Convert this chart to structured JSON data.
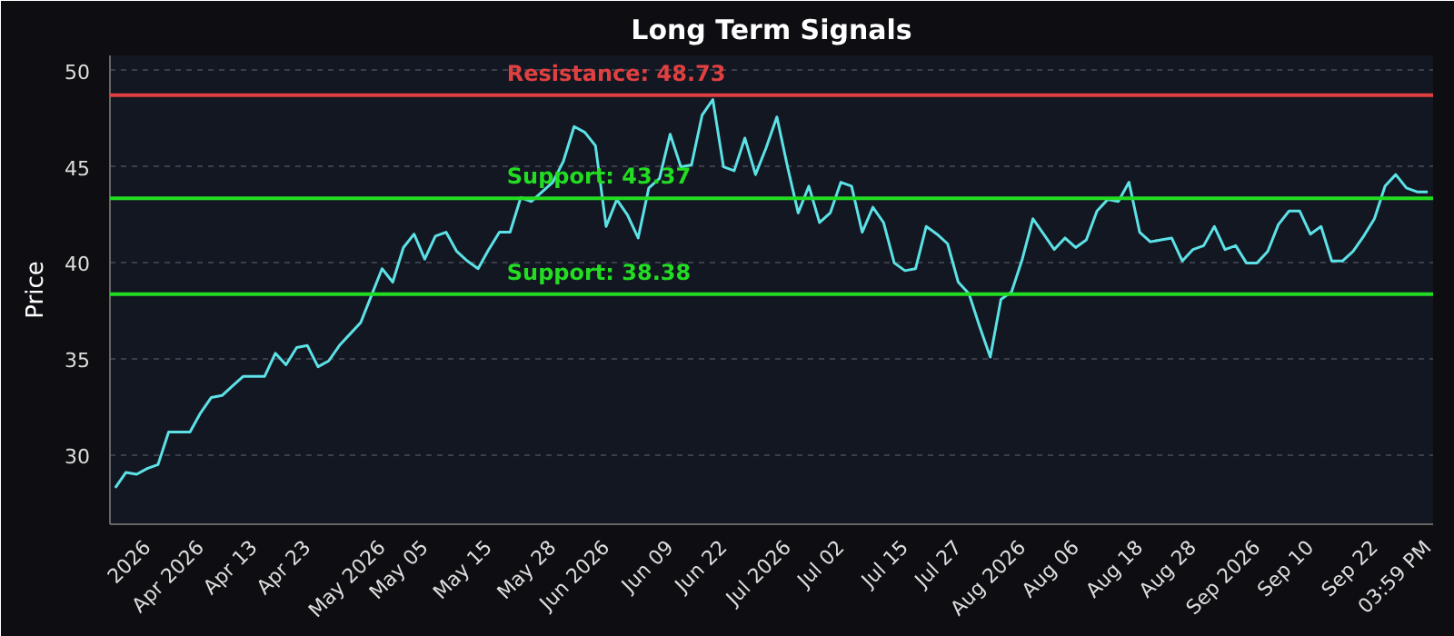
{
  "chart_data": {
    "type": "line",
    "title": "Long Term Signals",
    "ylabel": "Price",
    "categories": [
      null,
      null,
      null,
      "2026",
      null,
      null,
      null,
      null,
      "Apr 2026",
      null,
      null,
      null,
      null,
      "Apr 13",
      null,
      null,
      null,
      null,
      "Apr 23",
      null,
      null,
      null,
      null,
      null,
      null,
      "May 2026",
      null,
      null,
      null,
      "May 05",
      null,
      null,
      null,
      null,
      null,
      "May 15",
      null,
      null,
      null,
      null,
      null,
      "May 28",
      null,
      null,
      null,
      null,
      "Jun 2026",
      null,
      null,
      null,
      null,
      null,
      "Jun 09",
      null,
      null,
      null,
      null,
      "Jun 22",
      null,
      null,
      null,
      null,
      null,
      "Jul 2026",
      null,
      null,
      null,
      null,
      "Jul 02",
      null,
      null,
      null,
      null,
      null,
      "Jul 15",
      null,
      null,
      null,
      null,
      "Jul 27",
      null,
      null,
      null,
      null,
      null,
      "Aug 2026",
      null,
      null,
      null,
      null,
      "Aug 06",
      null,
      null,
      null,
      null,
      null,
      "Aug 18",
      null,
      null,
      null,
      null,
      "Aug 28",
      null,
      null,
      null,
      null,
      null,
      "Sep 2026",
      null,
      null,
      null,
      null,
      "Sep 10",
      null,
      null,
      null,
      null,
      null,
      "Sep 22",
      null,
      null,
      null,
      null,
      "03:59 PM"
    ],
    "series": [
      {
        "color": "#5ce1e6",
        "values": [
          28.3,
          29.1,
          29.0,
          29.3,
          29.5,
          31.2,
          31.2,
          31.2,
          32.2,
          33.0,
          33.1,
          33.6,
          34.1,
          34.1,
          34.1,
          35.3,
          34.7,
          35.6,
          35.7,
          34.6,
          34.9,
          35.7,
          36.3,
          36.9,
          38.3,
          39.7,
          39.0,
          40.8,
          41.5,
          40.2,
          41.4,
          41.6,
          40.6,
          40.1,
          39.7,
          40.7,
          41.6,
          41.6,
          43.4,
          43.2,
          43.7,
          44.2,
          45.3,
          47.1,
          46.8,
          46.1,
          41.9,
          43.3,
          42.5,
          41.3,
          43.9,
          44.4,
          46.7,
          45.0,
          45.1,
          47.7,
          48.5,
          45.0,
          44.8,
          46.5,
          44.6,
          46.0,
          47.6,
          45.0,
          42.6,
          44.0,
          42.1,
          42.6,
          44.2,
          44.0,
          41.6,
          42.9,
          42.1,
          40.0,
          39.6,
          39.7,
          41.9,
          41.5,
          41.0,
          39.0,
          38.4,
          36.7,
          35.1,
          38.1,
          38.5,
          40.2,
          42.3,
          41.5,
          40.7,
          41.3,
          40.8,
          41.2,
          42.7,
          43.3,
          43.2,
          44.2,
          41.6,
          41.1,
          41.2,
          41.3,
          40.1,
          40.7,
          40.9,
          41.9,
          40.7,
          40.9,
          40.0,
          40.0,
          40.6,
          42.0,
          42.7,
          42.7,
          41.5,
          41.9,
          40.1,
          40.1,
          40.6,
          41.4,
          42.3,
          44.0,
          44.6,
          43.9,
          43.7,
          43.7
        ]
      }
    ],
    "ylim": [
      26.4,
      50.8
    ],
    "yticks": [
      30,
      35,
      40,
      45,
      50
    ],
    "ref_lines": [
      {
        "axis": "y",
        "value": 48.73,
        "label": "Resistance: 48.73",
        "color": "#e04040"
      },
      {
        "axis": "y",
        "value": 43.37,
        "label": "Support: 43.37",
        "color": "#22dd22"
      },
      {
        "axis": "y",
        "value": 38.38,
        "label": "Support: 38.38",
        "color": "#22dd22"
      }
    ],
    "grid": "y"
  }
}
